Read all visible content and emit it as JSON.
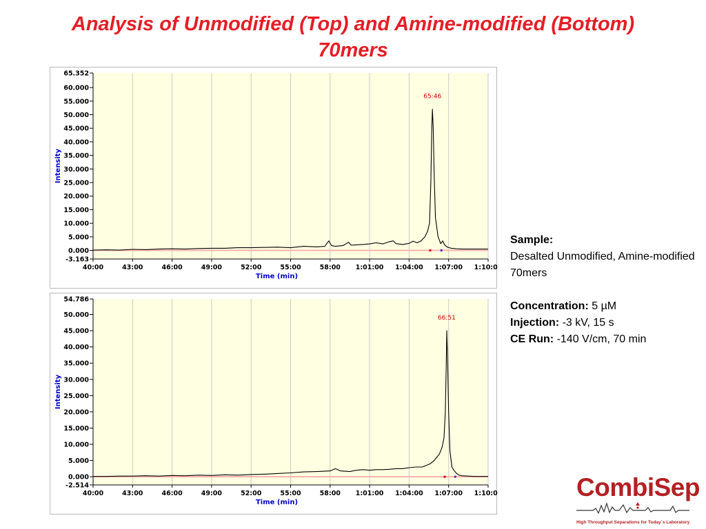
{
  "slide": {
    "title_line1": "Analysis of Unmodified (Top) and Amine-modified (Bottom)",
    "title_line2": "70mers"
  },
  "info": {
    "sample_label": "Sample:",
    "sample_value": "Desalted Unmodified, Amine-modified 70mers",
    "concentration_label": "Concentration:",
    "concentration_value": "5 µM",
    "injection_label": "Injection:",
    "injection_value": "-3 kV, 15 s",
    "ce_run_label": "CE Run:",
    "ce_run_value": "-140 V/cm, 70 min"
  },
  "logo": {
    "name": "CombiSep",
    "tagline": "High Throughput Separations for Today`s Laboratory",
    "registered_mark": "®"
  },
  "colors": {
    "title": "#e41e26",
    "plot_background": "#ffffe1",
    "axis_title": "#0000cc",
    "trace": "#000000",
    "baseline": "#ffb0b0",
    "peak_label": "#cc0000",
    "logo": "#b32024"
  },
  "chart_data": [
    {
      "type": "line",
      "name": "top",
      "xlabel": "Time (min)",
      "ylabel": "Intensity",
      "xlim": [
        40,
        70
      ],
      "ylim": [
        -3.163,
        65.352
      ],
      "xticks": [
        40,
        43,
        46,
        49,
        52,
        55,
        58,
        61,
        64,
        67,
        70
      ],
      "xtick_labels": [
        "40:00",
        "43:00",
        "46:00",
        "49:00",
        "52:00",
        "55:00",
        "58:00",
        "1:01:00",
        "1:04:00",
        "1:07:00",
        "1:10:00"
      ],
      "yticks": [
        65.352,
        60,
        55,
        50,
        45,
        40,
        35,
        30,
        25,
        20,
        15,
        10,
        5,
        0,
        -3.163
      ],
      "ytick_labels": [
        "65.352",
        "60.000",
        "55.000",
        "50.000",
        "45.000",
        "40.000",
        "35.000",
        "30.000",
        "25.000",
        "20.000",
        "15.000",
        "10.000",
        "5.000",
        "0.000",
        "-3.163"
      ],
      "peak_label": "65:46",
      "peak": {
        "x": 65.77,
        "y": 52
      },
      "markers": [
        {
          "x": 65.6,
          "color": "#cc0000"
        },
        {
          "x": 66.45,
          "color": "#3333cc"
        }
      ],
      "x": [
        40,
        41,
        42,
        43,
        44,
        45,
        46,
        47,
        48,
        49,
        50,
        51,
        52,
        53,
        54,
        55,
        56,
        57,
        57.6,
        57.9,
        58.1,
        58.4,
        59,
        59.4,
        59.6,
        59.8,
        60.5,
        61,
        61.5,
        62,
        62.5,
        62.8,
        63,
        63.5,
        64,
        64.3,
        64.6,
        64.9,
        65.2,
        65.4,
        65.55,
        65.65,
        65.72,
        65.77,
        65.83,
        65.9,
        66.0,
        66.2,
        66.4,
        66.55,
        66.7,
        66.9,
        67.2,
        67.6,
        68,
        69,
        70
      ],
      "y": [
        0.1,
        0.2,
        0.1,
        0.4,
        0.3,
        0.5,
        0.6,
        0.5,
        0.7,
        0.8,
        0.8,
        1.0,
        1.0,
        1.1,
        1.2,
        1.0,
        1.5,
        1.3,
        1.5,
        3.5,
        1.8,
        1.5,
        1.8,
        3.0,
        1.9,
        2.0,
        2.2,
        2.4,
        2.8,
        2.4,
        3.2,
        3.5,
        2.5,
        2.2,
        2.6,
        3.4,
        2.8,
        3.5,
        5.0,
        7.0,
        10.0,
        25.0,
        45.0,
        52.0,
        45.0,
        28.0,
        12.0,
        5.0,
        2.5,
        3.5,
        2.0,
        1.2,
        0.8,
        0.6,
        0.5,
        0.5,
        0.5
      ]
    },
    {
      "type": "line",
      "name": "bottom",
      "xlabel": "Time (min)",
      "ylabel": "Intensity",
      "xlim": [
        40,
        70
      ],
      "ylim": [
        -2.514,
        54.786
      ],
      "xticks": [
        40,
        43,
        46,
        49,
        52,
        55,
        58,
        61,
        64,
        67,
        70
      ],
      "xtick_labels": [
        "40:00",
        "43:00",
        "46:00",
        "49:00",
        "52:00",
        "55:00",
        "58:00",
        "1:01:00",
        "1:04:00",
        "1:07:00",
        "1:10:00"
      ],
      "yticks": [
        54.786,
        50,
        45,
        40,
        35,
        30,
        25,
        20,
        15,
        10,
        5,
        0,
        -2.514
      ],
      "ytick_labels": [
        "54.786",
        "50.000",
        "45.000",
        "40.000",
        "35.000",
        "30.000",
        "25.000",
        "20.000",
        "15.000",
        "10.000",
        "5.000",
        "0.000",
        "-2.514"
      ],
      "peak_label": "66:51",
      "peak": {
        "x": 66.85,
        "y": 45
      },
      "markers": [
        {
          "x": 66.7,
          "color": "#cc0000"
        },
        {
          "x": 67.5,
          "color": "#3333cc"
        }
      ],
      "x": [
        40,
        41,
        42,
        43,
        44,
        45,
        46,
        47,
        48,
        49,
        50,
        51,
        52,
        53,
        54,
        55,
        56,
        57,
        58,
        58.4,
        58.8,
        59.5,
        60,
        60.5,
        61,
        61.5,
        62,
        62.5,
        63,
        63.5,
        64,
        64.5,
        65,
        65.3,
        65.6,
        65.9,
        66.1,
        66.3,
        66.5,
        66.65,
        66.75,
        66.82,
        66.86,
        66.92,
        67.0,
        67.1,
        67.25,
        67.4,
        67.6,
        67.8,
        68,
        68.5,
        69,
        70
      ],
      "y": [
        0.1,
        0.1,
        0.2,
        0.2,
        0.3,
        0.2,
        0.4,
        0.3,
        0.5,
        0.4,
        0.6,
        0.5,
        0.7,
        0.8,
        1.0,
        1.2,
        1.5,
        1.6,
        1.8,
        2.5,
        1.8,
        1.6,
        2.0,
        2.2,
        2.0,
        2.2,
        2.2,
        2.3,
        2.5,
        2.5,
        2.8,
        3.0,
        3.0,
        3.5,
        4.0,
        5.0,
        6.0,
        7.0,
        9.0,
        12.0,
        20.0,
        35.0,
        45.0,
        36.0,
        20.0,
        8.0,
        3.0,
        2.0,
        1.0,
        0.5,
        0.3,
        0.2,
        0.1,
        0.1
      ]
    }
  ]
}
